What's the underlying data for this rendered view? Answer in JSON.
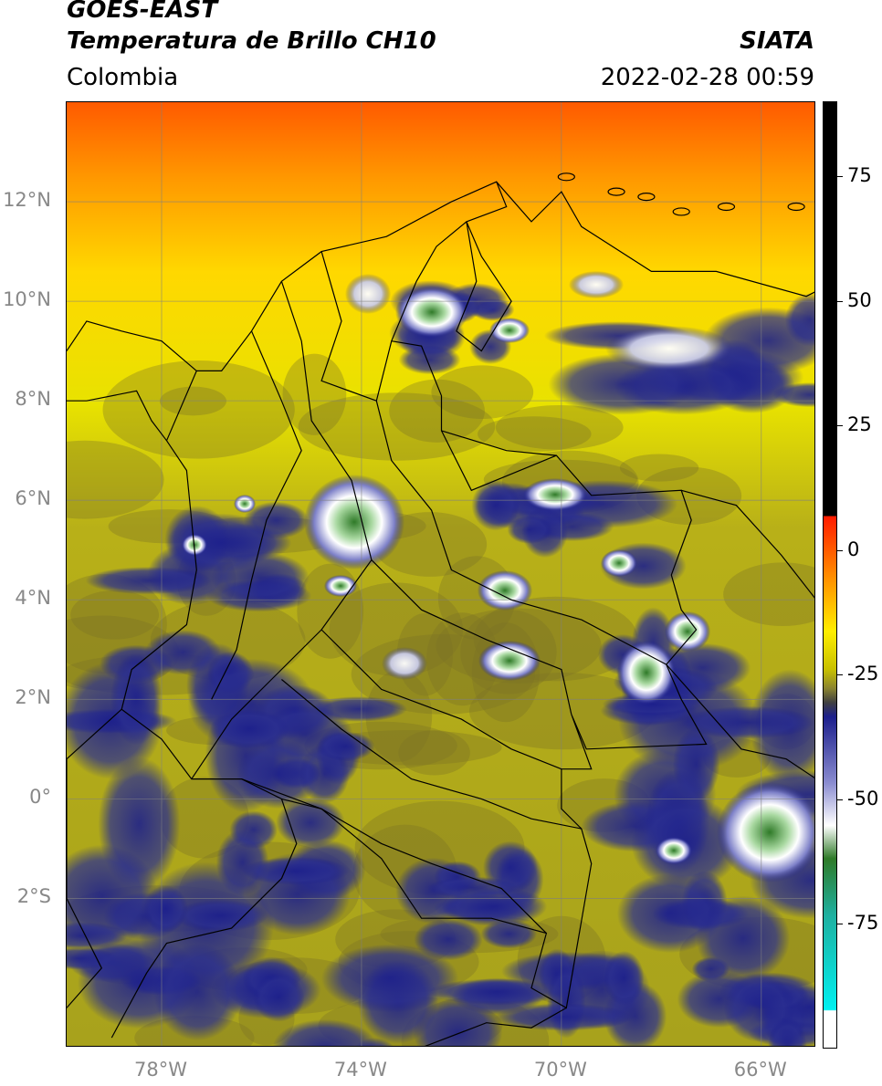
{
  "header": {
    "satellite": "GOES-EAST",
    "product": "Temperatura de Brillo CH10",
    "agency": "SIATA",
    "region": "Colombia",
    "timestamp": "2022-02-28 00:59"
  },
  "map": {
    "extent": {
      "lon_min": -79.9,
      "lon_max": -64.9,
      "lat_min": -5.0,
      "lat_max": 14.0
    },
    "lat_ticks": [
      {
        "value": 12,
        "label": "12°N"
      },
      {
        "value": 10,
        "label": "10°N"
      },
      {
        "value": 8,
        "label": "8°N"
      },
      {
        "value": 6,
        "label": "6°N"
      },
      {
        "value": 4,
        "label": "4°N"
      },
      {
        "value": 2,
        "label": "2°N"
      },
      {
        "value": 0,
        "label": "0°"
      },
      {
        "value": -2,
        "label": "2°S"
      }
    ],
    "lon_ticks": [
      {
        "value": -78,
        "label": "78°W"
      },
      {
        "value": -74,
        "label": "74°W"
      },
      {
        "value": -70,
        "label": "70°W"
      },
      {
        "value": -66,
        "label": "66°W"
      }
    ],
    "gridlines": true
  },
  "colorbar": {
    "min": -100,
    "max": 90,
    "ticks": [
      {
        "value": 75,
        "label": "75"
      },
      {
        "value": 50,
        "label": "50"
      },
      {
        "value": 25,
        "label": "25"
      },
      {
        "value": 0,
        "label": "0"
      },
      {
        "value": -25,
        "label": "-25"
      },
      {
        "value": -50,
        "label": "-50"
      },
      {
        "value": -75,
        "label": "-75"
      }
    ],
    "colors": {
      "warm": "#ff4a00",
      "orange": "#ff9a00",
      "yellow": "#ffee00",
      "olive": "#a8a21c",
      "dark_olive": "#7a7226",
      "navy": "#1c1f8c",
      "white": "#ffffff",
      "green": "#2f7a28",
      "teal": "#1ec8c0",
      "cyan": "#00e8e8",
      "black": "#000000"
    }
  }
}
